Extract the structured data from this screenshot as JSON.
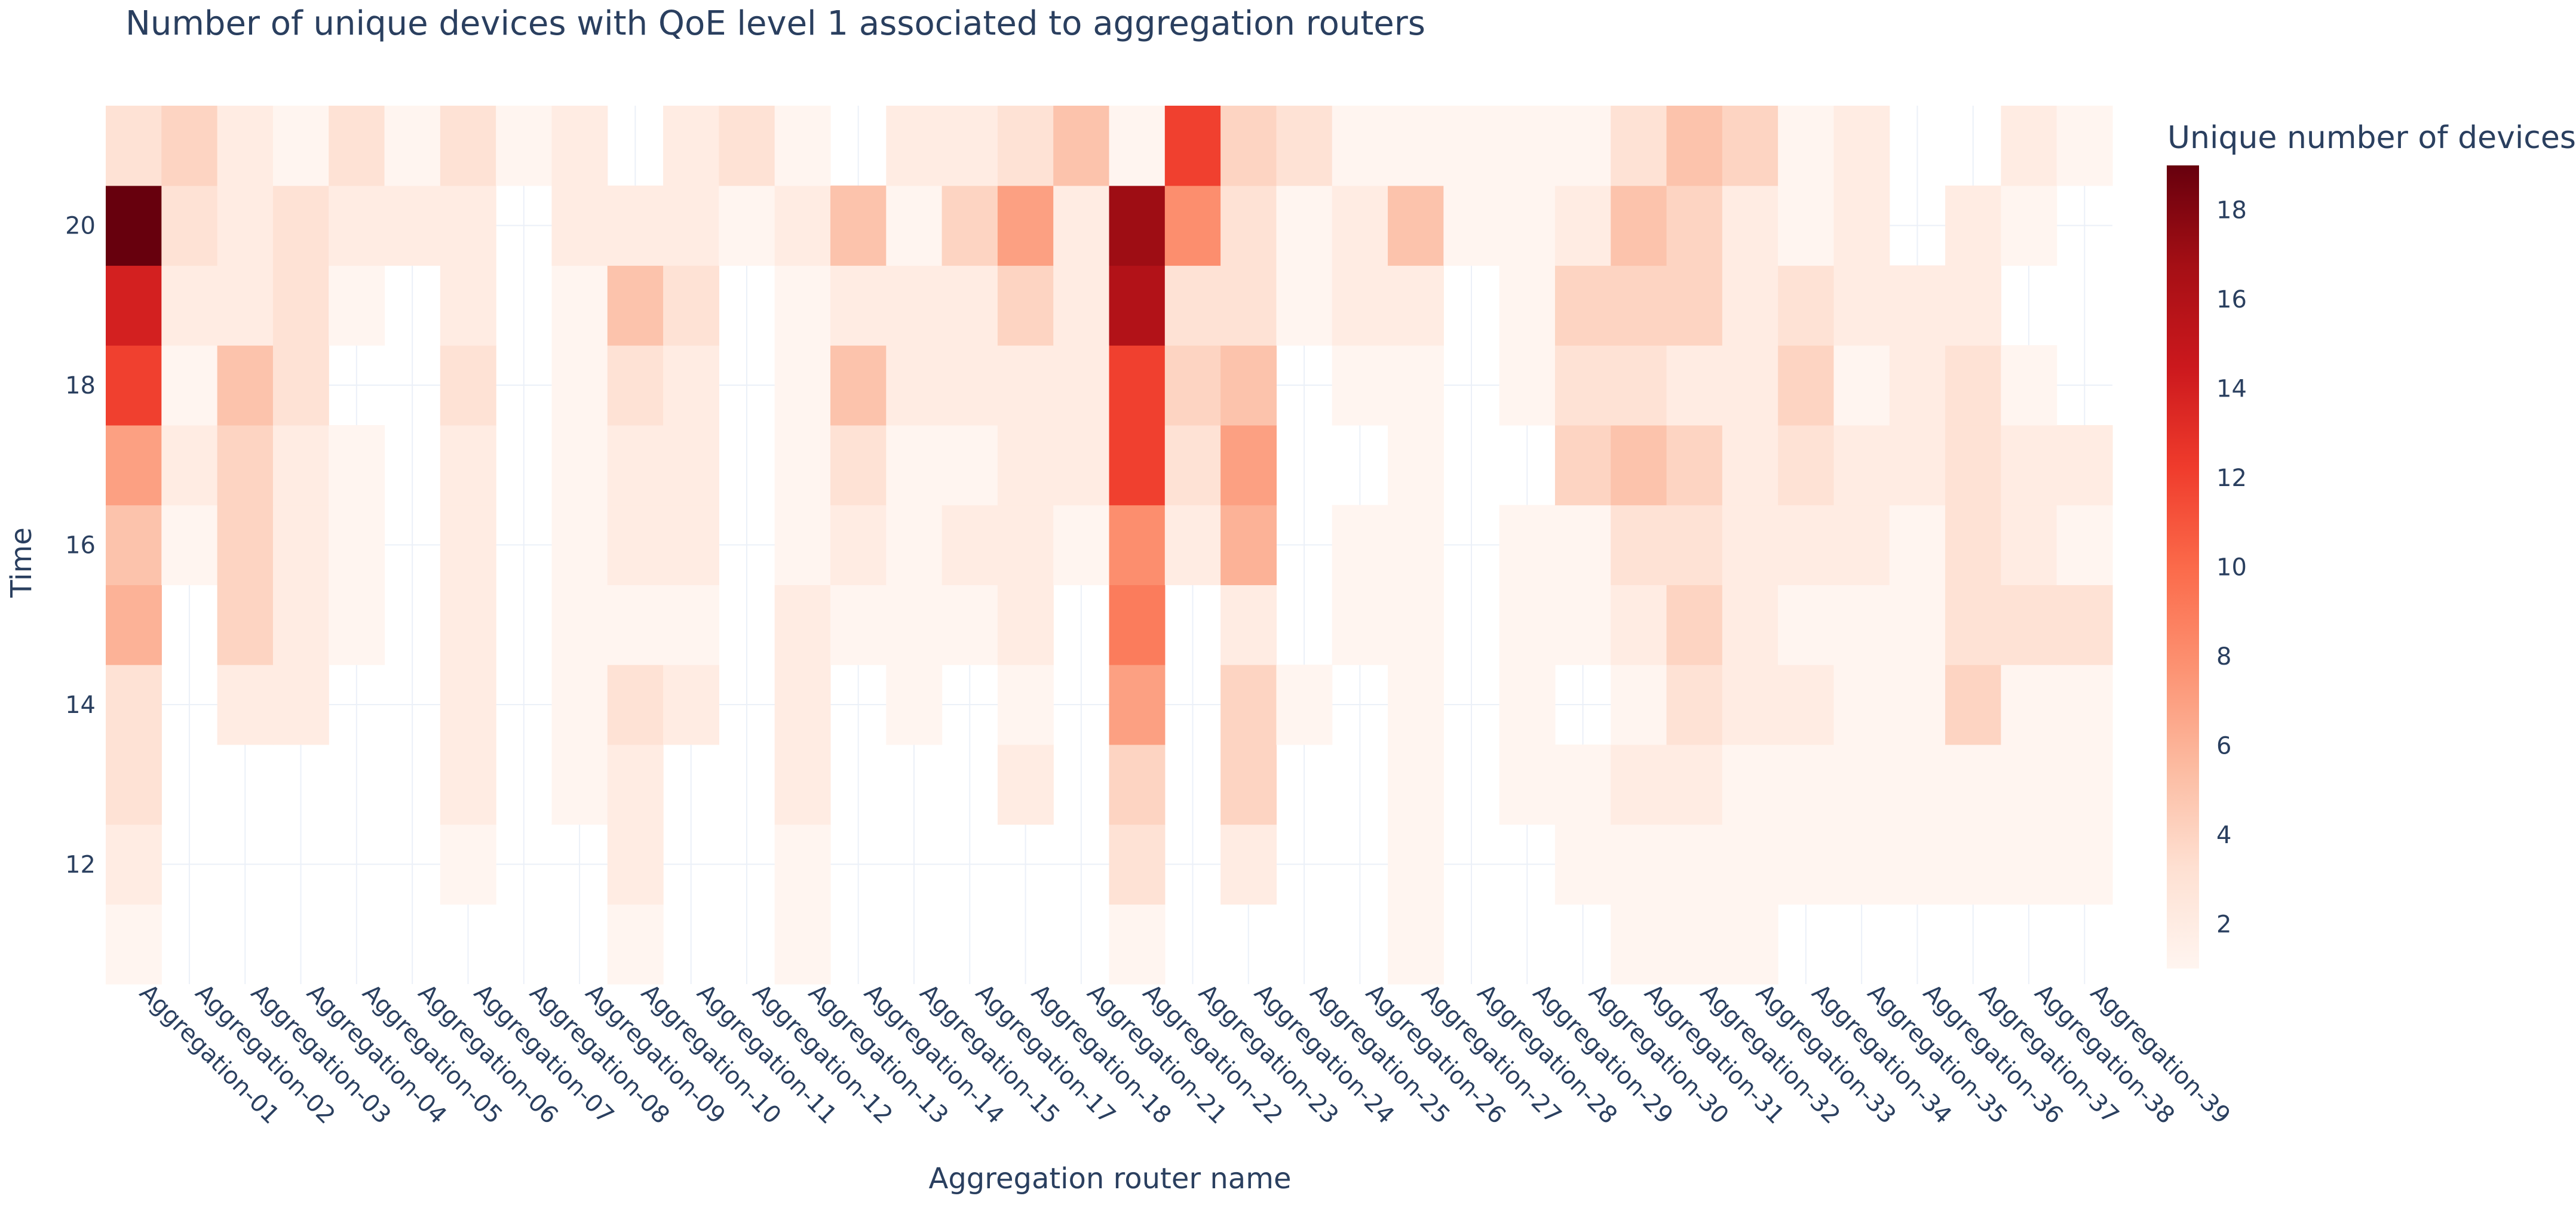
{
  "chart_data": {
    "type": "heatmap",
    "title": "Number of unique devices with QoE level 1 associated to aggregation routers",
    "xlabel": "Aggregation router name",
    "ylabel": "Time",
    "colorbar_title": "Unique number of devices",
    "colorscale": [
      "#fff5f0",
      "#fee0d2",
      "#fcbba1",
      "#fc9272",
      "#fb6a4a",
      "#ef3b2c",
      "#cb181d",
      "#a50f15",
      "#67000d"
    ],
    "zmin": 1,
    "zmax": 19,
    "colorbar_ticks": [
      2,
      4,
      6,
      8,
      10,
      12,
      14,
      16,
      18
    ],
    "y_ticks": [
      12,
      14,
      16,
      18,
      20
    ],
    "y_range": [
      10.5,
      21.5
    ],
    "hours": [
      11,
      12,
      13,
      14,
      15,
      16,
      17,
      18,
      19,
      20,
      21
    ],
    "categories": [
      "Aggregation-01",
      "Aggregation-02",
      "Aggregation-03",
      "Aggregation-04",
      "Aggregation-05",
      "Aggregation-06",
      "Aggregation-07",
      "Aggregation-08",
      "Aggregation-09",
      "Aggregation-10",
      "Aggregation-11",
      "Aggregation-12",
      "Aggregation-13",
      "Aggregation-14",
      "Aggregation-15",
      "Aggregation-17",
      "Aggregation-18",
      "Aggregation-21",
      "Aggregation-22",
      "Aggregation-23",
      "Aggregation-24",
      "Aggregation-25",
      "Aggregation-26",
      "Aggregation-27",
      "Aggregation-28",
      "Aggregation-29",
      "Aggregation-30",
      "Aggregation-31",
      "Aggregation-32",
      "Aggregation-33",
      "Aggregation-34",
      "Aggregation-35",
      "Aggregation-36",
      "Aggregation-37",
      "Aggregation-38",
      "Aggregation-39"
    ],
    "z": [
      [
        1,
        null,
        null,
        null,
        null,
        null,
        null,
        null,
        null,
        1,
        null,
        null,
        1,
        null,
        null,
        null,
        null,
        null,
        1,
        null,
        null,
        null,
        null,
        1,
        null,
        null,
        null,
        1,
        1,
        1,
        null,
        null,
        null,
        null,
        null,
        null
      ],
      [
        2,
        null,
        null,
        null,
        null,
        null,
        1,
        null,
        null,
        2,
        null,
        null,
        1,
        null,
        null,
        null,
        null,
        null,
        3,
        null,
        2,
        null,
        null,
        1,
        null,
        null,
        1,
        1,
        1,
        1,
        1,
        1,
        1,
        1,
        1,
        1
      ],
      [
        3,
        null,
        null,
        null,
        null,
        null,
        2,
        null,
        1,
        2,
        null,
        null,
        2,
        null,
        null,
        null,
        2,
        null,
        4,
        null,
        4,
        null,
        null,
        1,
        null,
        1,
        1,
        2,
        2,
        1,
        1,
        1,
        1,
        1,
        1,
        1
      ],
      [
        3,
        null,
        2,
        2,
        null,
        null,
        2,
        null,
        1,
        3,
        2,
        null,
        2,
        null,
        1,
        null,
        1,
        null,
        7,
        null,
        4,
        1,
        null,
        1,
        null,
        1,
        null,
        1,
        3,
        2,
        2,
        1,
        1,
        4,
        1,
        1
      ],
      [
        6,
        null,
        4,
        2,
        1,
        null,
        2,
        null,
        1,
        1,
        1,
        null,
        2,
        1,
        1,
        1,
        2,
        null,
        9,
        null,
        2,
        null,
        1,
        1,
        null,
        1,
        1,
        2,
        4,
        2,
        1,
        1,
        1,
        3,
        3,
        3
      ],
      [
        5,
        1,
        4,
        2,
        1,
        null,
        2,
        null,
        1,
        2,
        2,
        null,
        1,
        2,
        1,
        2,
        2,
        1,
        8,
        2,
        6,
        null,
        1,
        1,
        null,
        1,
        1,
        3,
        3,
        2,
        2,
        2,
        1,
        3,
        2,
        1
      ],
      [
        7,
        2,
        4,
        2,
        1,
        null,
        2,
        null,
        1,
        2,
        2,
        null,
        1,
        3,
        1,
        1,
        2,
        2,
        12,
        3,
        7,
        null,
        null,
        1,
        null,
        null,
        4,
        5,
        4,
        2,
        3,
        2,
        2,
        3,
        2,
        2
      ],
      [
        12,
        1,
        5,
        3,
        null,
        null,
        3,
        null,
        1,
        3,
        2,
        null,
        1,
        5,
        2,
        2,
        2,
        2,
        12,
        4,
        5,
        null,
        1,
        1,
        null,
        1,
        3,
        3,
        2,
        2,
        4,
        1,
        2,
        3,
        1,
        null
      ],
      [
        14,
        2,
        2,
        3,
        1,
        null,
        2,
        null,
        1,
        5,
        3,
        null,
        1,
        2,
        2,
        2,
        4,
        2,
        16,
        3,
        3,
        1,
        2,
        2,
        null,
        1,
        4,
        4,
        4,
        2,
        3,
        2,
        2,
        2,
        null,
        null
      ],
      [
        19,
        3,
        2,
        3,
        2,
        2,
        2,
        null,
        2,
        2,
        2,
        1,
        2,
        5,
        1,
        4,
        7,
        2,
        17,
        8,
        3,
        1,
        2,
        5,
        1,
        1,
        2,
        5,
        4,
        2,
        1,
        2,
        null,
        2,
        1,
        null
      ],
      [
        3,
        4,
        2,
        1,
        3,
        1,
        3,
        1,
        2,
        null,
        2,
        3,
        1,
        null,
        2,
        2,
        3,
        5,
        1,
        12,
        4,
        3,
        1,
        1,
        1,
        1,
        1,
        3,
        5,
        4,
        1,
        2,
        null,
        null,
        2,
        1
      ]
    ]
  }
}
